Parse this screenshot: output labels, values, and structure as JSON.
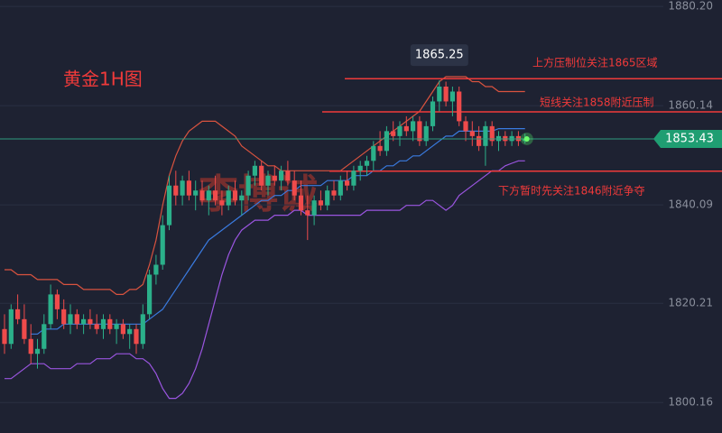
{
  "chart_data": {
    "type": "candlestick",
    "title": "黄金1H图",
    "watermark": "李博诚",
    "ylim": [
      1794,
      1881.5
    ],
    "yticks": [
      {
        "value": 1880.2,
        "label": "1880.20"
      },
      1860.14,
      1840.09,
      1820.21,
      1800.16
    ],
    "up_color": "#2bb08a",
    "down_color": "#ef4b4b",
    "candles": {
      "open": [
        1815,
        1812,
        1819,
        1817,
        1813,
        1810,
        1811,
        1816,
        1822,
        1819,
        1816,
        1818,
        1816,
        1817,
        1816,
        1815,
        1817,
        1815,
        1816,
        1814,
        1815,
        1812,
        1818,
        1826,
        1828,
        1836,
        1844,
        1842,
        1845,
        1842,
        1843,
        1841,
        1843,
        1841,
        1840,
        1843,
        1841,
        1842,
        1846,
        1848,
        1844,
        1846,
        1845,
        1847,
        1845,
        1842,
        1839,
        1838,
        1841,
        1840,
        1843,
        1842,
        1845,
        1844,
        1847,
        1848,
        1849,
        1852,
        1851,
        1855,
        1854,
        1856,
        1855,
        1857,
        1853,
        1856,
        1861,
        1864,
        1861,
        1863,
        1857,
        1855,
        1854,
        1852,
        1856,
        1853,
        1854,
        1853,
        1854,
        1853
      ],
      "high": [
        1818,
        1820,
        1822,
        1820,
        1816,
        1813,
        1818,
        1824,
        1823,
        1821,
        1820,
        1819,
        1818,
        1819,
        1818,
        1818,
        1818,
        1817,
        1817,
        1816,
        1816,
        1820,
        1827,
        1830,
        1838,
        1846,
        1847,
        1846,
        1847,
        1845,
        1845,
        1844,
        1846,
        1843,
        1844,
        1845,
        1843,
        1847,
        1849,
        1849,
        1847,
        1848,
        1848,
        1849,
        1847,
        1845,
        1842,
        1842,
        1843,
        1844,
        1845,
        1846,
        1847,
        1848,
        1849,
        1850,
        1853,
        1855,
        1856,
        1857,
        1857,
        1858,
        1858,
        1858,
        1857,
        1862,
        1865.25,
        1865,
        1864,
        1864,
        1858,
        1857,
        1856,
        1857,
        1857,
        1855,
        1855,
        1855,
        1855,
        1854.5
      ],
      "low": [
        1810,
        1811,
        1816,
        1812,
        1808,
        1807,
        1810,
        1815,
        1817,
        1815,
        1814,
        1815,
        1814,
        1815,
        1814,
        1813,
        1814,
        1812,
        1813,
        1811,
        1810,
        1811,
        1817,
        1824,
        1827,
        1835,
        1840,
        1840,
        1841,
        1839,
        1840,
        1838,
        1840,
        1838,
        1839,
        1840,
        1838,
        1841,
        1844,
        1843,
        1842,
        1844,
        1843,
        1844,
        1841,
        1838,
        1833,
        1836,
        1839,
        1839,
        1841,
        1841,
        1843,
        1843,
        1845,
        1846,
        1847,
        1850,
        1850,
        1853,
        1852,
        1854,
        1853,
        1852,
        1852,
        1855,
        1859,
        1860,
        1858,
        1856,
        1853,
        1852,
        1851,
        1848,
        1852,
        1851,
        1852,
        1852,
        1852,
        1852.5
      ],
      "close": [
        1812,
        1819,
        1817,
        1813,
        1810,
        1811,
        1816,
        1822,
        1819,
        1816,
        1818,
        1816,
        1817,
        1816,
        1815,
        1817,
        1815,
        1816,
        1814,
        1815,
        1812,
        1818,
        1826,
        1828,
        1836,
        1844,
        1842,
        1845,
        1842,
        1843,
        1841,
        1843,
        1841,
        1840,
        1843,
        1841,
        1842,
        1846,
        1848,
        1844,
        1846,
        1845,
        1847,
        1845,
        1842,
        1839,
        1838,
        1841,
        1840,
        1843,
        1842,
        1845,
        1844,
        1847,
        1848,
        1849,
        1852,
        1851,
        1855,
        1854,
        1856,
        1855,
        1857,
        1853,
        1856,
        1861,
        1864,
        1861,
        1863,
        1857,
        1855,
        1854,
        1852,
        1856,
        1853,
        1854,
        1853,
        1854,
        1853,
        1853.43
      ]
    },
    "bands": [
      {
        "color": "#d9533f",
        "values": [
          1827,
          1827,
          1826,
          1826,
          1826,
          1825,
          1825,
          1825,
          1825,
          1824,
          1824,
          1824,
          1823,
          1823,
          1823,
          1823,
          1823,
          1822,
          1822,
          1823,
          1823,
          1824,
          1828,
          1833,
          1840,
          1846,
          1850,
          1853,
          1855,
          1856,
          1857,
          1857,
          1857,
          1856,
          1855,
          1854,
          1852,
          1851,
          1850,
          1849,
          1848,
          1848,
          1847,
          1847,
          1847,
          1847,
          1847,
          1847,
          1847,
          1847,
          1847,
          1847,
          1848,
          1849,
          1850,
          1851,
          1852,
          1853,
          1854,
          1855,
          1856,
          1857,
          1858,
          1859,
          1861,
          1863,
          1865,
          1866,
          1866,
          1866,
          1866,
          1865,
          1865,
          1864,
          1864,
          1863,
          1863,
          1863,
          1863,
          1863
        ]
      },
      {
        "color": "#3a7be0",
        "values": [
          null,
          null,
          null,
          null,
          1814,
          1814,
          1815,
          1815,
          1815,
          1816,
          1816,
          1816,
          1816,
          1816,
          1816,
          1816,
          1816,
          1816,
          1816,
          1816,
          1816,
          1816,
          1817,
          1818,
          1819,
          1821,
          1823,
          1825,
          1827,
          1829,
          1831,
          1833,
          1834,
          1835,
          1836,
          1837,
          1838,
          1839,
          1840,
          1841,
          1841,
          1842,
          1842,
          1843,
          1843,
          1844,
          1844,
          1844,
          1844,
          1845,
          1845,
          1845,
          1845,
          1846,
          1846,
          1846,
          1847,
          1847,
          1848,
          1848,
          1849,
          1849,
          1850,
          1850,
          1851,
          1852,
          1853,
          1854,
          1854,
          1855,
          1855,
          1855,
          1855,
          1855,
          1855,
          1855.5,
          1855.5,
          1855.5,
          1855.5,
          1855.5
        ]
      },
      {
        "color": "#9a55e0",
        "values": [
          1805,
          1805,
          1806,
          1807,
          1808,
          1808,
          1808,
          1807,
          1807,
          1807,
          1807,
          1808,
          1808,
          1808,
          1809,
          1809,
          1809,
          1810,
          1810,
          1810,
          1809,
          1809,
          1808,
          1806,
          1803,
          1801,
          1801,
          1802,
          1804,
          1807,
          1811,
          1816,
          1821,
          1826,
          1830,
          1833,
          1835,
          1836,
          1837,
          1837,
          1837,
          1838,
          1838,
          1838,
          1839,
          1839,
          1838,
          1838,
          1838,
          1838,
          1838,
          1838,
          1838,
          1838,
          1838,
          1839,
          1839,
          1839,
          1839,
          1839,
          1839,
          1840,
          1840,
          1840,
          1841,
          1841,
          1840,
          1839,
          1840,
          1842,
          1843,
          1844,
          1845,
          1846,
          1847,
          1847,
          1848,
          1848.5,
          1849,
          1849
        ]
      }
    ],
    "levels": [
      {
        "value": 1865.6,
        "label": "上方压制位关注1865区域",
        "color": "#f03a3a"
      },
      {
        "value": 1858.9,
        "label": "短线关注1858附近压制",
        "color": "#f03a3a"
      },
      {
        "value": 1846.9,
        "label": "下方暂时先关注1846附近争夺",
        "color": "#f03a3a"
      }
    ],
    "price_line_color": "#2f9c7e"
  }
}
